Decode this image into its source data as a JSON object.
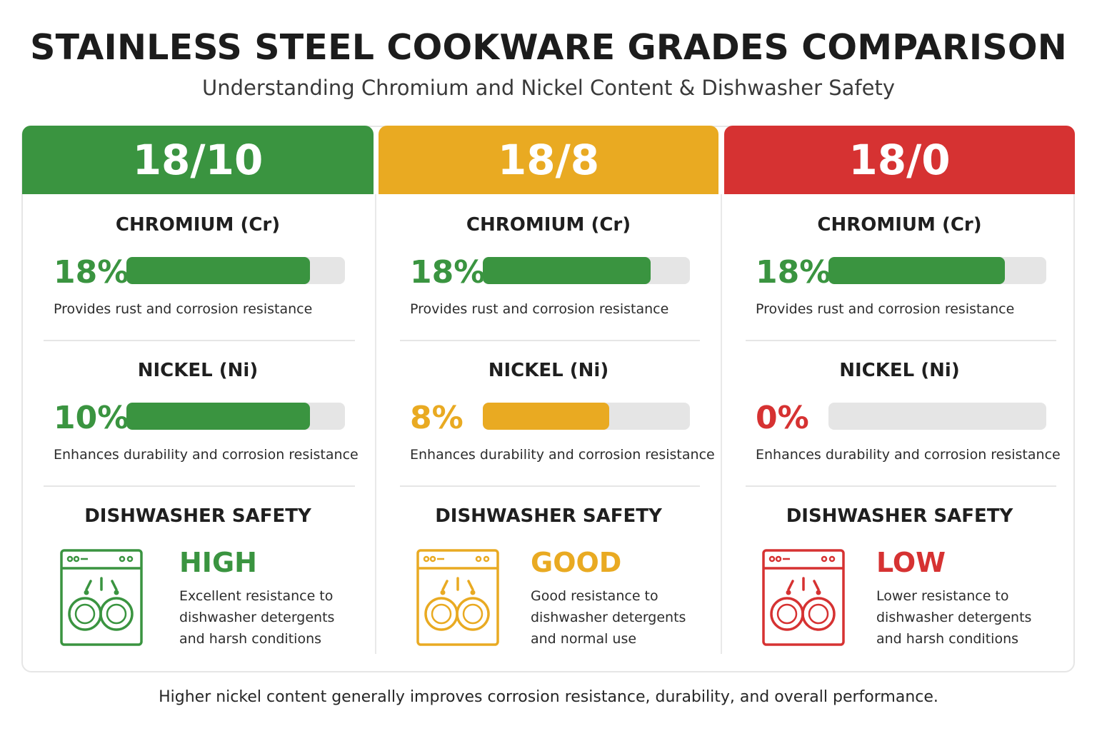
{
  "header": {
    "title": "STAINLESS STEEL COOKWARE GRADES COMPARISON",
    "subtitle": "Understanding Chromium and Nickel Content & Dishwasher Safety"
  },
  "labels": {
    "chromium": "CHROMIUM (Cr)",
    "nickel": "NICKEL (Ni)",
    "dishwasher": "DISHWASHER SAFETY"
  },
  "grades": [
    {
      "name": "18/10",
      "color": "#3a9440",
      "chromium": {
        "pct_text": "18%",
        "level": 0.84,
        "desc": "Provides rust and corrosion resistance"
      },
      "nickel": {
        "pct_text": "10%",
        "level": 0.84,
        "desc": "Enhances durability and corrosion resistance"
      },
      "safety": {
        "level": "HIGH",
        "desc_lines": [
          "Excellent resistance to",
          "dishwasher detergents",
          "and harsh conditions"
        ],
        "icon": "dishwasher-icon"
      }
    },
    {
      "name": "18/8",
      "color": "#e9aa22",
      "chromium": {
        "pct_text": "18%",
        "level": 0.81,
        "desc": "Provides rust and corrosion resistance"
      },
      "nickel": {
        "pct_text": "8%",
        "level": 0.61,
        "desc": "Enhances durability and corrosion resistance"
      },
      "safety": {
        "level": "GOOD",
        "desc_lines": [
          "Good resistance to",
          "dishwasher detergents",
          "and normal use"
        ],
        "icon": "dishwasher-icon"
      }
    },
    {
      "name": "18/0",
      "color": "#d63232",
      "chromium": {
        "pct_text": "18%",
        "level": 0.81,
        "desc": "Provides rust and corrosion resistance"
      },
      "nickel": {
        "pct_text": "0%",
        "level": 0,
        "desc": "Enhances durability and corrosion resistance"
      },
      "safety": {
        "level": "LOW",
        "desc_lines": [
          "Lower resistance to",
          "dishwasher detergents",
          "and harsh conditions"
        ],
        "icon": "dishwasher-icon"
      }
    }
  ],
  "footer": "Higher nickel content generally improves corrosion resistance, durability, and overall performance."
}
